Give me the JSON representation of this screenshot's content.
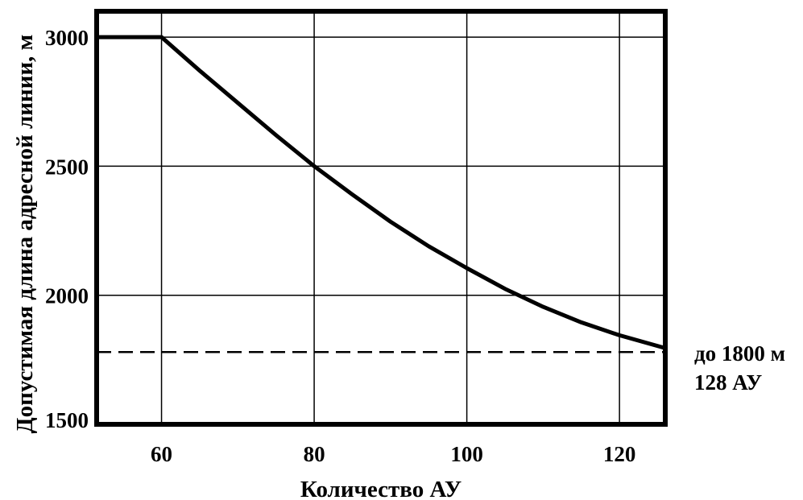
{
  "chart_data": {
    "type": "line",
    "title": "",
    "xlabel": "Количество АУ",
    "ylabel": "Допустимая длина адресной линии, м",
    "xlim": [
      51.5,
      126
    ],
    "ylim": [
      1500,
      3100
    ],
    "x_ticks": [
      60,
      80,
      100,
      120
    ],
    "x_tick_labels": [
      "60",
      "80",
      "100",
      "120"
    ],
    "y_ticks": [
      1500,
      2000,
      2500,
      3000
    ],
    "y_tick_labels": [
      "1500",
      "2000",
      "2500",
      "3000"
    ],
    "grid": true,
    "legend": "none",
    "series": [
      {
        "x": [
          51.5,
          60,
          65,
          70,
          75,
          80,
          85,
          90,
          95,
          100,
          105,
          110,
          115,
          120,
          126
        ],
        "y": [
          3000,
          3000,
          2870,
          2745,
          2620,
          2500,
          2390,
          2285,
          2190,
          2105,
          2025,
          1955,
          1895,
          1845,
          1795
        ]
      }
    ],
    "reference_line": {
      "y": 1780,
      "style": "dashed"
    },
    "annotations": [
      "до 1800 м",
      "128 АУ"
    ]
  },
  "colors": {
    "line": "#000000",
    "grid": "#000000",
    "background": "#ffffff"
  }
}
